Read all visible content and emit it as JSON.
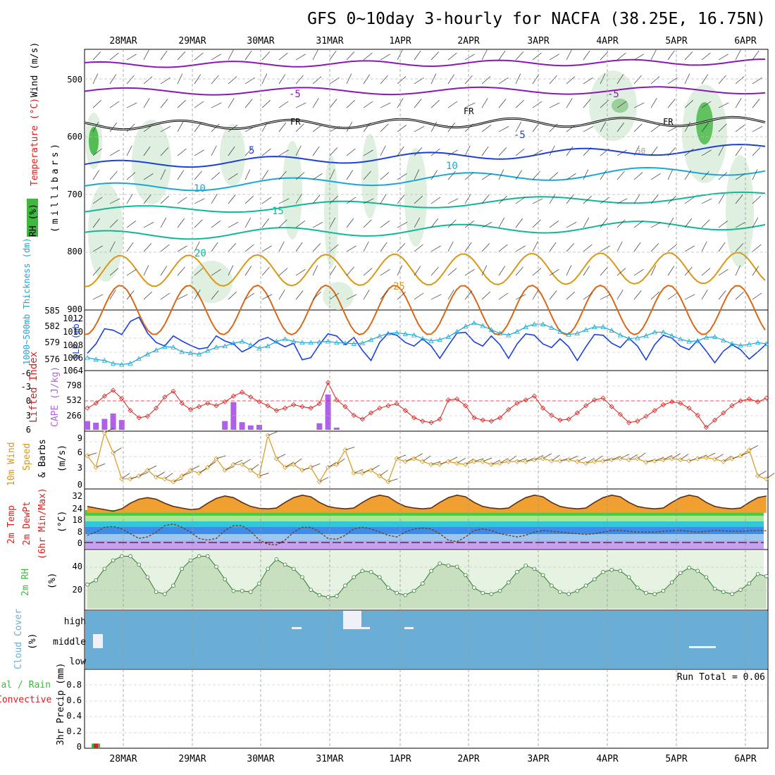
{
  "title": "GFS 0~10day 3-hourly for NACFA (38.25E, 16.75N)",
  "dates": [
    "28MAR",
    "29MAR",
    "30MAR",
    "31MAR",
    "1APR",
    "2APR",
    "3APR",
    "4APR",
    "5APR",
    "6APR"
  ],
  "colors": {
    "purple": "#8a18b8",
    "black": "#000000",
    "blue": "#1c40d8",
    "cyan": "#18a8d8",
    "teal": "#10b898",
    "orange": "#d89818",
    "darkorange": "#d86818",
    "green": "#40b840",
    "red": "#d82020",
    "cloud": "#6aaed6",
    "grid": "#999999"
  },
  "panels": {
    "upper": {
      "ylabel": "(millibars)",
      "legend_rh": "RH (%)",
      "legend_temp": "Temperature (°C)",
      "legend_wind": "Wind (m/s)",
      "yticks": [
        "500",
        "600",
        "700",
        "800",
        "900"
      ],
      "contour_labels": [
        "-5",
        "-5",
        "FR",
        "FR",
        "FR",
        "-5",
        "-5",
        "5",
        "10",
        "10",
        "15",
        "20",
        "25",
        "50"
      ]
    },
    "slp": {
      "label_thickness": "1000~500mb Thickness (dm)",
      "label_slp": "SLP (mb)",
      "left_ticks": [
        "585",
        "582",
        "579",
        "576"
      ],
      "right_ticks": [
        "1012",
        "1010",
        "1008",
        "1006",
        "1064"
      ]
    },
    "cape": {
      "label_li": "Lifted Index",
      "label_cape": "CAPE (J/kg)",
      "left_ticks": [
        "-6",
        "-3",
        "0",
        "3",
        "6"
      ],
      "right_ticks": [
        "798",
        "532",
        "266"
      ]
    },
    "wind10": {
      "label_a": "10m Wind",
      "label_b": "Speed",
      "label_c": "& Barbs",
      "unit": "(m/s)",
      "ticks": [
        "9",
        "6",
        "3",
        "0"
      ]
    },
    "temp2m": {
      "label_a": "2m Temp",
      "label_b": "2m DewPt",
      "label_c": "(6hr Min/Max)",
      "unit": "(°C)",
      "ticks": [
        "32",
        "24",
        "18",
        "8",
        "0"
      ]
    },
    "rh2m": {
      "label": "2m RH",
      "unit": "(%)",
      "ticks": [
        "40",
        "20"
      ]
    },
    "cloud": {
      "label": "Cloud Cover",
      "unit": "(%)",
      "levels": [
        "high",
        "middle",
        "low"
      ]
    },
    "precip": {
      "label_a": "Total / Rain",
      "label_b": "Convective",
      "label_c": "3hr Precip (mm)",
      "ticks": [
        "0.8",
        "0.6",
        "0.4",
        "0.2",
        "0"
      ],
      "run_total": "Run Total = 0.06"
    }
  },
  "chart_data": [
    {
      "type": "line",
      "title": "SLP (mb)",
      "ylim": [
        1005,
        1013
      ],
      "x_step_hours": 3,
      "values": [
        1007.2,
        1008.5,
        1010.6,
        1010.4,
        1009.8,
        1011.6,
        1012.2,
        1010.0,
        1008.7,
        1008.2,
        1009.6,
        1008.9,
        1008.3,
        1007.8,
        1008.0,
        1009.6,
        1008.9,
        1008.5,
        1007.4,
        1008.0,
        1009.0,
        1009.4,
        1008.7,
        1008.1,
        1008.6,
        1006.3,
        1006.6,
        1008.4,
        1009.9,
        1009.6,
        1008.4,
        1009.4,
        1007.6,
        1006.2,
        1008.7,
        1010.0,
        1009.7,
        1008.7,
        1008.2,
        1009.2,
        1008.2,
        1006.5,
        1008.3,
        1010.0,
        1010.1,
        1008.8,
        1008.2,
        1009.6,
        1008.4,
        1006.5,
        1008.5,
        1009.9,
        1009.7,
        1008.5,
        1008.0,
        1009.2,
        1008.1,
        1006.2,
        1008.1,
        1009.8,
        1009.7,
        1008.6,
        1008.0,
        1009.3,
        1008.2,
        1006.3,
        1008.4,
        1009.7,
        1009.3,
        1008.2,
        1007.7,
        1009.0,
        1007.5,
        1005.9,
        1007.5,
        1008.4,
        1007.7,
        1006.4,
        1007.4,
        1008.5,
        1007.8,
        1007.3,
        1008.5,
        1008.9,
        1007.8,
        1006.9,
        1007.4,
        1008.0,
        1007.3,
        1008.3,
        1009.4
      ]
    },
    {
      "type": "line",
      "title": "1000~500mb Thickness (dm)",
      "ylim": [
        575,
        585
      ],
      "x_step_hours": 3,
      "values": [
        577.0,
        576.7,
        576.5,
        576.0,
        575.8,
        576.0,
        576.8,
        577.6,
        578.3,
        578.9,
        578.8,
        578.0,
        577.8,
        577.6,
        578.2,
        578.8,
        579.0,
        579.5,
        579.8,
        579.2,
        578.6,
        579.0,
        579.8,
        580.2,
        579.8,
        579.6,
        579.6,
        579.7,
        579.8,
        579.6,
        579.5,
        579.4,
        579.5,
        580.1,
        580.7,
        581.2,
        581.3,
        581.1,
        580.9,
        580.3,
        579.9,
        580.1,
        580.6,
        581.5,
        582.4,
        583.0,
        582.5,
        581.8,
        581.2,
        580.9,
        581.5,
        582.3,
        582.8,
        582.8,
        582.2,
        581.5,
        581.0,
        581.2,
        581.8,
        582.3,
        582.3,
        581.7,
        580.9,
        580.3,
        580.4,
        580.8,
        581.4,
        581.4,
        580.8,
        580.2,
        579.8,
        579.9,
        580.5,
        580.6,
        580.0,
        579.4,
        579.1,
        579.3,
        579.6,
        579.4,
        578.9,
        578.6,
        578.5,
        578.7,
        578.9,
        579.1,
        579.0,
        578.6,
        578.2,
        577.9,
        578.3
      ]
    },
    {
      "type": "bar",
      "title": "CAPE (J/kg)",
      "ylim": [
        0,
        1064
      ],
      "x_step_hours": 3,
      "values": [
        160,
        130,
        200,
        300,
        180,
        0,
        0,
        0,
        0,
        0,
        0,
        0,
        0,
        0,
        0,
        0,
        160,
        510,
        140,
        80,
        90,
        0,
        0,
        0,
        0,
        0,
        0,
        120,
        650,
        40,
        0,
        0,
        0,
        0,
        0,
        0,
        0,
        0,
        0,
        0,
        0,
        0,
        0,
        0,
        0,
        0,
        0,
        0,
        0,
        0,
        0,
        0,
        0,
        0,
        0,
        0,
        0,
        0,
        0,
        0,
        0,
        0,
        0,
        0,
        0,
        0,
        0,
        0,
        0,
        0,
        0,
        0,
        0,
        0,
        0,
        0,
        0,
        0,
        0,
        0,
        0,
        0,
        0,
        0,
        0,
        0,
        0,
        0,
        0,
        0,
        0
      ]
    },
    {
      "type": "line",
      "title": "Lifted Index",
      "ylim": [
        6,
        -6
      ],
      "x_step_hours": 3,
      "values": [
        1.5,
        0.5,
        -1.0,
        -2.2,
        -0.5,
        2.0,
        3.5,
        3.2,
        1.5,
        -0.8,
        -2.0,
        0.5,
        1.8,
        1.2,
        0.5,
        1.0,
        0.2,
        -1.0,
        -1.8,
        -0.8,
        0.2,
        1.0,
        2.0,
        1.5,
        0.8,
        1.2,
        1.5,
        0.6,
        -3.8,
        -0.2,
        1.2,
        3.0,
        3.8,
        2.5,
        1.5,
        1.0,
        0.6,
        2.0,
        3.5,
        4.2,
        4.5,
        3.8,
        -0.2,
        -0.4,
        1.0,
        3.5,
        4.0,
        4.2,
        3.5,
        1.8,
        0.5,
        -0.2,
        -1.0,
        1.5,
        3.0,
        4.0,
        3.8,
        2.5,
        1.0,
        -0.2,
        -0.6,
        1.2,
        2.8,
        4.5,
        4.2,
        3.2,
        2.0,
        0.8,
        0.2,
        0.5,
        1.5,
        3.0,
        5.5,
        4.0,
        2.5,
        1.0,
        0.0,
        -0.4,
        0.2,
        -0.6,
        -0.5,
        0.8,
        2.2,
        3.0,
        2.5,
        1.2,
        -0.4,
        -2.5,
        -2.0,
        -0.5,
        -0.8,
        -0.6,
        -0.4,
        -0.5,
        -0.3,
        -0.2,
        0.0,
        -0.2,
        0.2,
        -0.4
      ]
    },
    {
      "type": "line",
      "title": "10m Wind Speed (m/s)",
      "ylim": [
        0,
        9.5
      ],
      "x_step_hours": 3,
      "values": [
        5.5,
        3.5,
        9.5,
        6.0,
        1.5,
        1.5,
        2.0,
        3.0,
        1.8,
        1.5,
        1.0,
        2.0,
        3.0,
        2.5,
        3.5,
        5.0,
        3.0,
        4.0,
        4.0,
        3.0,
        2.0,
        9.0,
        5.0,
        3.5,
        4.0,
        3.0,
        3.5,
        1.0,
        3.5,
        4.0,
        6.5,
        2.5,
        2.5,
        3.0,
        2.0,
        1.0,
        5.0,
        4.5,
        5.0,
        4.5,
        4.0,
        4.0,
        4.5,
        4.2,
        4.0,
        4.5,
        4.5,
        4.0,
        4.2,
        4.5,
        4.5,
        4.5,
        4.8,
        5.0,
        4.6,
        4.6,
        4.8,
        4.5,
        4.2,
        4.5,
        4.6,
        4.8,
        5.0,
        4.8,
        5.0,
        4.4,
        4.6,
        4.8,
        5.0,
        4.8,
        4.6,
        5.0,
        5.2,
        4.9,
        4.5,
        5.0,
        5.5,
        6.5,
        2.0,
        1.5,
        0.8,
        0.3,
        1.5,
        2.5,
        4.0,
        6.5,
        7.5,
        6.5,
        3.0,
        1.0,
        1.5,
        1.0,
        2.0,
        2.5
      ]
    },
    {
      "type": "area",
      "title": "2m Temp (°C)",
      "ylim": [
        -2,
        34
      ],
      "x_step_hours": 3,
      "values": [
        24.0,
        23.0,
        22.0,
        21.0,
        22.5,
        26.0,
        28.5,
        29.5,
        28.5,
        26.0,
        24.0,
        23.0,
        22.0,
        22.5,
        26.0,
        29.0,
        30.5,
        29.5,
        26.5,
        24.0,
        22.8,
        22.5,
        23.0,
        26.5,
        29.5,
        31.0,
        30.0,
        26.5,
        24.0,
        23.0,
        22.5,
        23.0,
        26.5,
        29.5,
        31.0,
        30.0,
        26.5,
        24.0,
        23.0,
        22.5,
        23.0,
        26.5,
        29.5,
        31.0,
        30.0,
        26.5,
        24.0,
        23.0,
        22.5,
        23.0,
        26.5,
        29.5,
        31.0,
        30.0,
        26.5,
        24.0,
        23.0,
        22.5,
        23.0,
        26.5,
        29.5,
        31.0,
        30.0,
        26.5,
        24.0,
        23.0,
        22.5,
        23.0,
        26.5,
        29.5,
        31.0,
        30.0,
        26.5,
        24.0,
        23.0,
        22.5,
        23.0,
        26.5,
        29.5,
        30.5,
        29.5,
        26.5,
        24.0,
        23.0,
        22.0,
        21.5,
        23.0,
        27.0
      ]
    },
    {
      "type": "line",
      "title": "2m DewPt (°C)",
      "ylim": [
        -2,
        34
      ],
      "x_step_hours": 3,
      "values": [
        6.0,
        8.0,
        11.0,
        11.5,
        10.0,
        7.0,
        4.0,
        5.0,
        8.0,
        12.0,
        13.0,
        11.0,
        8.0,
        4.0,
        3.0,
        4.0,
        9.0,
        12.0,
        12.0,
        8.5,
        3.0,
        0.5,
        0.0,
        3.0,
        8.0,
        11.0,
        11.0,
        8.0,
        4.0,
        3.5,
        6.0,
        10.0,
        11.0,
        10.0,
        8.0,
        6.0,
        5.0,
        8.0,
        10.0,
        10.5,
        10.0,
        7.0,
        3.0,
        2.0,
        5.0,
        9.0,
        10.0,
        9.0,
        7.0,
        6.0,
        5.0,
        6.0,
        8.0,
        9.0,
        8.5,
        8.0,
        7.5,
        7.0,
        6.5,
        7.0,
        8.0,
        9.0,
        9.0,
        8.5,
        8.0,
        8.0,
        8.0,
        8.5,
        8.8,
        9.0,
        8.5,
        8.0,
        8.5,
        9.0,
        8.8,
        8.5,
        8.5,
        8.8,
        9.0,
        8.8,
        8.5,
        8.8,
        9.0,
        8.7,
        8.5,
        8.8,
        9.0
      ]
    },
    {
      "type": "area",
      "title": "2m RH (%)",
      "ylim": [
        0,
        55
      ],
      "x_step_hours": 3,
      "values": [
        23,
        27,
        38,
        46,
        50,
        50,
        42,
        30,
        16,
        14,
        22,
        38,
        46,
        50,
        50,
        40,
        28,
        17,
        17,
        16,
        24,
        38,
        47,
        42,
        38,
        30,
        18,
        13,
        11,
        12,
        22,
        30,
        36,
        35,
        30,
        20,
        15,
        13,
        17,
        24,
        36,
        43,
        41,
        40,
        32,
        20,
        15,
        14,
        17,
        25,
        35,
        41,
        38,
        32,
        22,
        16,
        14,
        17,
        22,
        28,
        35,
        37,
        36,
        30,
        20,
        15,
        14,
        17,
        25,
        34,
        39,
        36,
        30,
        19,
        16,
        14,
        18,
        24,
        33,
        31,
        29,
        28,
        27,
        25,
        22,
        21,
        22,
        30,
        33,
        30,
        33,
        39,
        35,
        27
      ]
    },
    {
      "type": "bar",
      "title": "3hr Precip (mm)",
      "run_total": 0.06,
      "ylim": [
        0,
        1.0
      ],
      "x_step_hours": 3,
      "values": [
        0.06,
        0,
        0,
        0,
        0,
        0,
        0,
        0,
        0,
        0,
        0,
        0,
        0,
        0,
        0,
        0,
        0,
        0,
        0,
        0,
        0,
        0,
        0,
        0,
        0,
        0,
        0,
        0,
        0,
        0,
        0,
        0,
        0,
        0,
        0,
        0,
        0,
        0,
        0,
        0,
        0,
        0,
        0,
        0,
        0,
        0,
        0,
        0,
        0,
        0,
        0,
        0,
        0,
        0,
        0,
        0,
        0,
        0,
        0,
        0,
        0,
        0,
        0,
        0,
        0,
        0,
        0,
        0,
        0,
        0,
        0,
        0,
        0,
        0,
        0,
        0,
        0,
        0,
        0,
        0
      ]
    }
  ]
}
